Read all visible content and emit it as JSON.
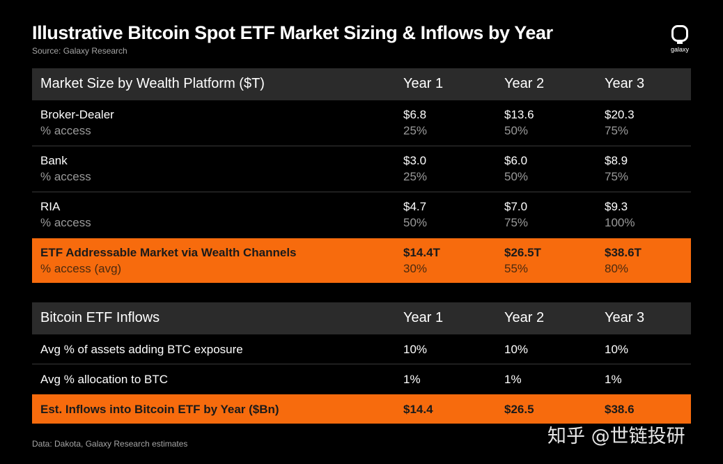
{
  "header": {
    "title": "Illustrative Bitcoin Spot ETF Market Sizing & Inflows by Year",
    "source": "Source: Galaxy Research",
    "logo_text": "galaxy"
  },
  "table1": {
    "headers": [
      "Market Size by Wealth Platform ($T)",
      "Year 1",
      "Year 2",
      "Year 3"
    ],
    "rows": [
      {
        "label": "Broker-Dealer",
        "sublabel": "% access",
        "values": [
          "$6.8",
          "$13.6",
          "$20.3"
        ],
        "subvalues": [
          "25%",
          "50%",
          "75%"
        ]
      },
      {
        "label": "Bank",
        "sublabel": "% access",
        "values": [
          "$3.0",
          "$6.0",
          "$8.9"
        ],
        "subvalues": [
          "25%",
          "50%",
          "75%"
        ]
      },
      {
        "label": "RIA",
        "sublabel": "% access",
        "values": [
          "$4.7",
          "$7.0",
          "$9.3"
        ],
        "subvalues": [
          "50%",
          "75%",
          "100%"
        ]
      },
      {
        "label": "ETF Addressable Market via Wealth Channels",
        "sublabel": "% access (avg)",
        "values": [
          "$14.4T",
          "$26.5T",
          "$38.6T"
        ],
        "subvalues": [
          "30%",
          "55%",
          "80%"
        ]
      }
    ]
  },
  "table2": {
    "headers": [
      "Bitcoin ETF Inflows",
      "Year 1",
      "Year 2",
      "Year 3"
    ],
    "rows": [
      {
        "label": "Avg % of assets adding BTC exposure",
        "values": [
          "10%",
          "10%",
          "10%"
        ]
      },
      {
        "label": "Avg % allocation to BTC",
        "values": [
          "1%",
          "1%",
          "1%"
        ]
      },
      {
        "label": "Est. Inflows into Bitcoin ETF by Year ($Bn)",
        "values": [
          "$14.4",
          "$26.5",
          "$38.6"
        ]
      }
    ]
  },
  "footer": {
    "note": "Data: Dakota, Galaxy Research estimates"
  },
  "watermark": {
    "text": "知乎 @世链投研"
  },
  "colors": {
    "background": "#000000",
    "header_row": "#2b2b2b",
    "highlight": "#f76b0d",
    "divider": "#3a3a3a"
  }
}
